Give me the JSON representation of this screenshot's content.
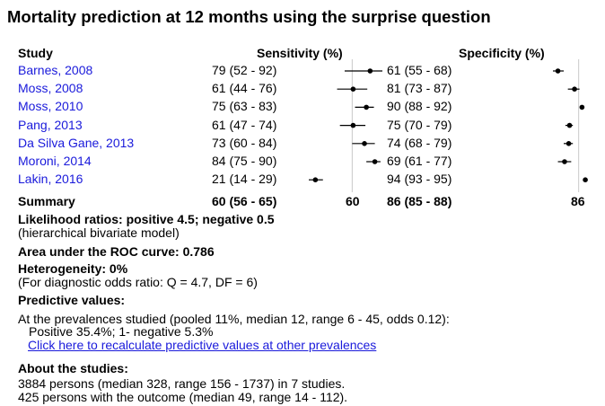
{
  "title": "Mortality prediction at 12 months using the surprise question",
  "headers": {
    "study": "Study",
    "sensitivity": "Sensitivity (%)",
    "specificity": "Specificity (%)"
  },
  "chart_data": {
    "type": "forest",
    "studies": [
      {
        "name": "Barnes, 2008",
        "sens_text": "79 (52 - 92)",
        "sens": 79,
        "sens_lo": 52,
        "sens_hi": 92,
        "spec_text": "61 (55 - 68)",
        "spec": 61,
        "spec_lo": 55,
        "spec_hi": 68
      },
      {
        "name": "Moss, 2008",
        "sens_text": "61 (44 - 76)",
        "sens": 61,
        "sens_lo": 44,
        "sens_hi": 76,
        "spec_text": "81 (73 - 87)",
        "spec": 81,
        "spec_lo": 73,
        "spec_hi": 87
      },
      {
        "name": "Moss, 2010",
        "sens_text": "75 (63 - 83)",
        "sens": 75,
        "sens_lo": 63,
        "sens_hi": 83,
        "spec_text": "90 (88 - 92)",
        "spec": 90,
        "spec_lo": 88,
        "spec_hi": 92
      },
      {
        "name": "Pang, 2013",
        "sens_text": "61 (47 - 74)",
        "sens": 61,
        "sens_lo": 47,
        "sens_hi": 74,
        "spec_text": "75 (70 - 79)",
        "spec": 75,
        "spec_lo": 70,
        "spec_hi": 79
      },
      {
        "name": "Da Silva Gane, 2013",
        "sens_text": "73 (60 - 84)",
        "sens": 73,
        "sens_lo": 60,
        "sens_hi": 84,
        "spec_text": "74 (68 - 79)",
        "spec": 74,
        "spec_lo": 68,
        "spec_hi": 79
      },
      {
        "name": "Moroni, 2014",
        "sens_text": "84 (75 - 90)",
        "sens": 84,
        "sens_lo": 75,
        "sens_hi": 90,
        "spec_text": "69 (61 - 77)",
        "spec": 69,
        "spec_lo": 61,
        "spec_hi": 77
      },
      {
        "name": "Lakin, 2016",
        "sens_text": "21 (14 - 29)",
        "sens": 21,
        "sens_lo": 14,
        "sens_hi": 29,
        "spec_text": "94 (93 - 95)",
        "spec": 94,
        "spec_lo": 93,
        "spec_hi": 95
      }
    ],
    "summary": {
      "label": "Summary",
      "sens_text": "60 (56 - 65)",
      "sens": 60,
      "spec_text": "86 (85 - 88)",
      "spec": 86
    },
    "sens_tick": "60",
    "spec_tick": "86",
    "sens_axis": [
      14,
      92
    ],
    "spec_axis": [
      55,
      95
    ]
  },
  "stats": {
    "lr_heading": "Likelihood ratios: positive 4.5; negative 0.5",
    "lr_note": "(hierarchical bivariate model)",
    "auc": "Area under the ROC curve: 0.786",
    "het_heading": "Heterogeneity: 0%",
    "het_note": "(For diagnostic odds ratio: Q = 4.7, DF = 6)",
    "pv_heading": "Predictive values:",
    "pv_line1": "At the prevalences studied (pooled 11%, median 12, range 6 - 45, odds 0.12):",
    "pv_line2": "Positive 35.4%; 1- negative 5.3%",
    "pv_link": "Click here to recalculate predictive values at other prevalences",
    "about_heading": "About the studies:",
    "about_line1": "3884 persons (median 328, range 156 - 1737) in 7 studies.",
    "about_line2": "425 persons with the outcome (median 49, range 14 - 112)."
  }
}
